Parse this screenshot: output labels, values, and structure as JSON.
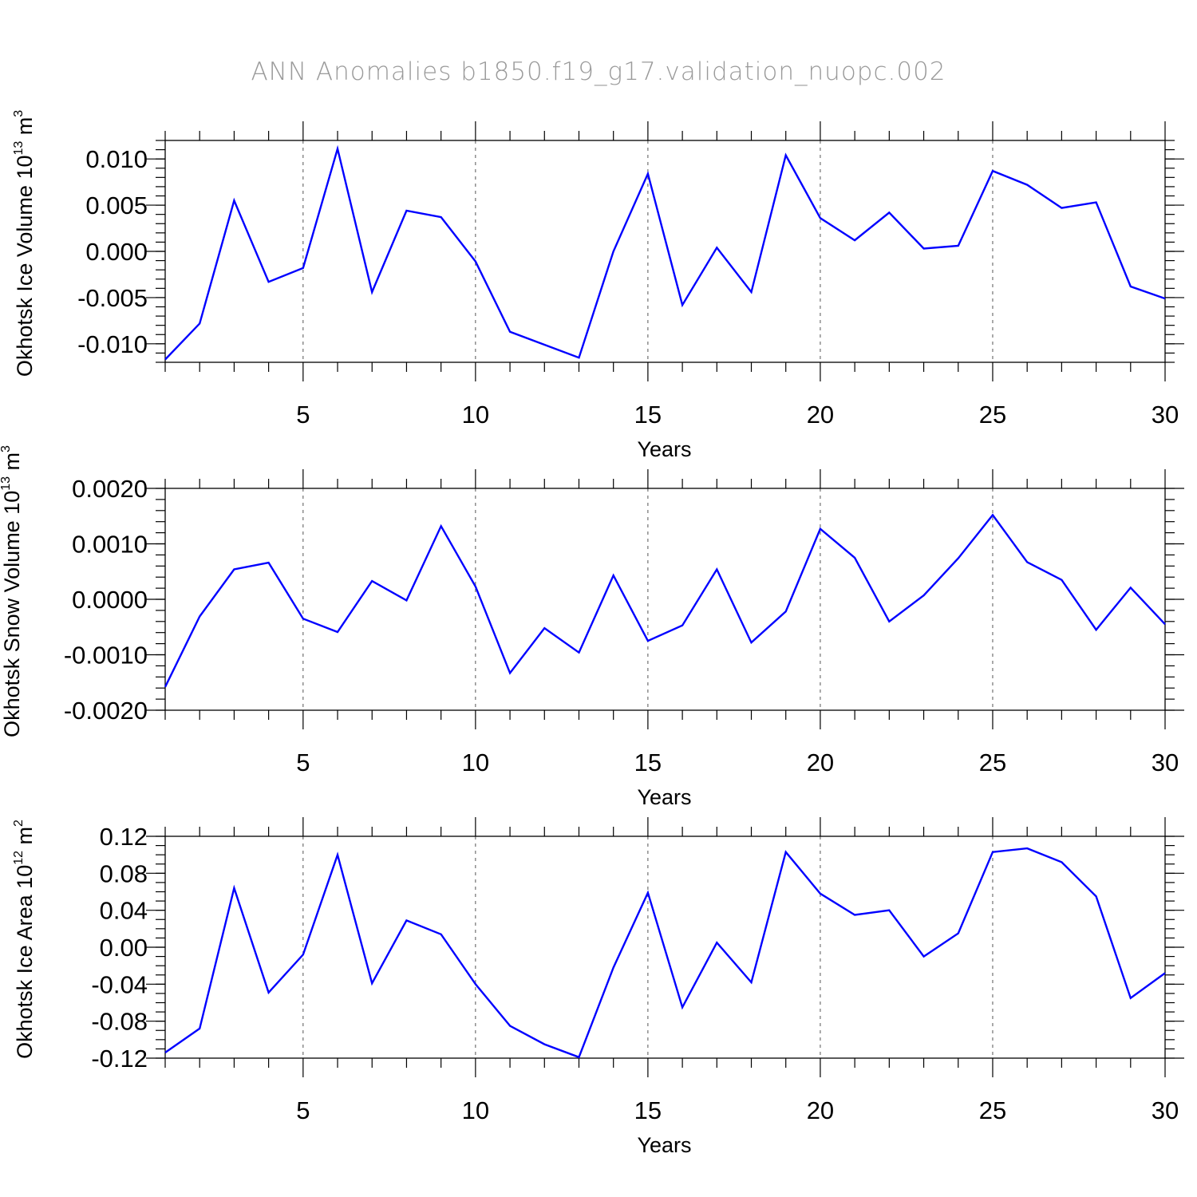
{
  "title": "ANN Anomalies b1850.f19_g17.validation_nuopc.002",
  "chart_data": [
    {
      "type": "line",
      "ylabel": "Okhotsk Ice Volume",
      "units_base": "10",
      "units_exp": "13",
      "units_unit": "m",
      "units_unit_exp": "3",
      "xlabel": "Years",
      "x": [
        1,
        2,
        3,
        4,
        5,
        6,
        7,
        8,
        9,
        10,
        11,
        12,
        13,
        14,
        15,
        16,
        17,
        18,
        19,
        20,
        21,
        22,
        23,
        24,
        25,
        26,
        27,
        28,
        29,
        30
      ],
      "values": [
        -0.0117,
        -0.0078,
        0.0055,
        -0.0033,
        -0.0018,
        0.0111,
        -0.0044,
        0.0044,
        0.0037,
        -0.0011,
        -0.0087,
        -0.0101,
        -0.0115,
        0.0,
        0.0084,
        -0.0058,
        0.0004,
        -0.0044,
        0.0104,
        0.0036,
        0.0012,
        0.0042,
        0.0003,
        0.0006,
        0.0087,
        0.0072,
        0.0047,
        0.0053,
        -0.0038,
        -0.0051
      ],
      "xlim": [
        1,
        30
      ],
      "ylim": [
        -0.012,
        0.012
      ],
      "yticks": [
        -0.01,
        -0.005,
        0.0,
        0.005,
        0.01
      ],
      "ytick_labels": [
        "-0.010",
        "-0.005",
        "0.000",
        "0.005",
        "0.010"
      ],
      "yminor_step": 0.001,
      "xticks": [
        5,
        10,
        15,
        20,
        25,
        30
      ],
      "xtick_labels": [
        "5",
        "10",
        "15",
        "20",
        "25",
        "30"
      ],
      "line_color": "#0000ff"
    },
    {
      "type": "line",
      "ylabel": "Okhotsk Snow Volume",
      "units_base": "10",
      "units_exp": "13",
      "units_unit": "m",
      "units_unit_exp": "3",
      "xlabel": "Years",
      "x": [
        1,
        2,
        3,
        4,
        5,
        6,
        7,
        8,
        9,
        10,
        11,
        12,
        13,
        14,
        15,
        16,
        17,
        18,
        19,
        20,
        21,
        22,
        23,
        24,
        25,
        26,
        27,
        28,
        29,
        30
      ],
      "values": [
        -0.00158,
        -0.00031,
        0.00054,
        0.00066,
        -0.00035,
        -0.00059,
        0.00033,
        -2e-05,
        0.00132,
        0.00023,
        -0.00133,
        -0.00052,
        -0.00096,
        0.00043,
        -0.00075,
        -0.00047,
        0.00054,
        -0.00078,
        -0.00022,
        0.00127,
        0.00075,
        -0.0004,
        7e-05,
        0.00074,
        0.00152,
        0.00067,
        0.00035,
        -0.00055,
        0.00021,
        -0.00045
      ],
      "xlim": [
        1,
        30
      ],
      "ylim": [
        -0.002,
        0.002
      ],
      "yticks": [
        -0.002,
        -0.001,
        0.0,
        0.001,
        0.002
      ],
      "ytick_labels": [
        "-0.0020",
        "-0.0010",
        "0.0000",
        "0.0010",
        "0.0020"
      ],
      "yminor_step": 0.0002,
      "xticks": [
        5,
        10,
        15,
        20,
        25,
        30
      ],
      "xtick_labels": [
        "5",
        "10",
        "15",
        "20",
        "25",
        "30"
      ],
      "line_color": "#0000ff"
    },
    {
      "type": "line",
      "ylabel": "Okhotsk Ice Area",
      "units_base": "10",
      "units_exp": "12",
      "units_unit": "m",
      "units_unit_exp": "2",
      "xlabel": "Years",
      "x": [
        1,
        2,
        3,
        4,
        5,
        6,
        7,
        8,
        9,
        10,
        11,
        12,
        13,
        14,
        15,
        16,
        17,
        18,
        19,
        20,
        21,
        22,
        23,
        24,
        25,
        26,
        27,
        28,
        29,
        30
      ],
      "values": [
        -0.114,
        -0.088,
        0.064,
        -0.049,
        -0.008,
        0.1,
        -0.039,
        0.029,
        0.014,
        -0.04,
        -0.085,
        -0.105,
        -0.119,
        -0.022,
        0.059,
        -0.065,
        0.005,
        -0.038,
        0.103,
        0.058,
        0.035,
        0.04,
        -0.01,
        0.015,
        0.103,
        0.107,
        0.092,
        0.055,
        -0.055,
        -0.028
      ],
      "xlim": [
        1,
        30
      ],
      "ylim": [
        -0.12,
        0.12
      ],
      "yticks": [
        -0.12,
        -0.08,
        -0.04,
        0.0,
        0.04,
        0.08,
        0.12
      ],
      "ytick_labels": [
        "-0.12",
        "-0.08",
        "-0.04",
        "0.00",
        "0.04",
        "0.08",
        "0.12"
      ],
      "yminor_step": 0.01,
      "xticks": [
        5,
        10,
        15,
        20,
        25,
        30
      ],
      "xtick_labels": [
        "5",
        "10",
        "15",
        "20",
        "25",
        "30"
      ],
      "line_color": "#0000ff"
    }
  ]
}
